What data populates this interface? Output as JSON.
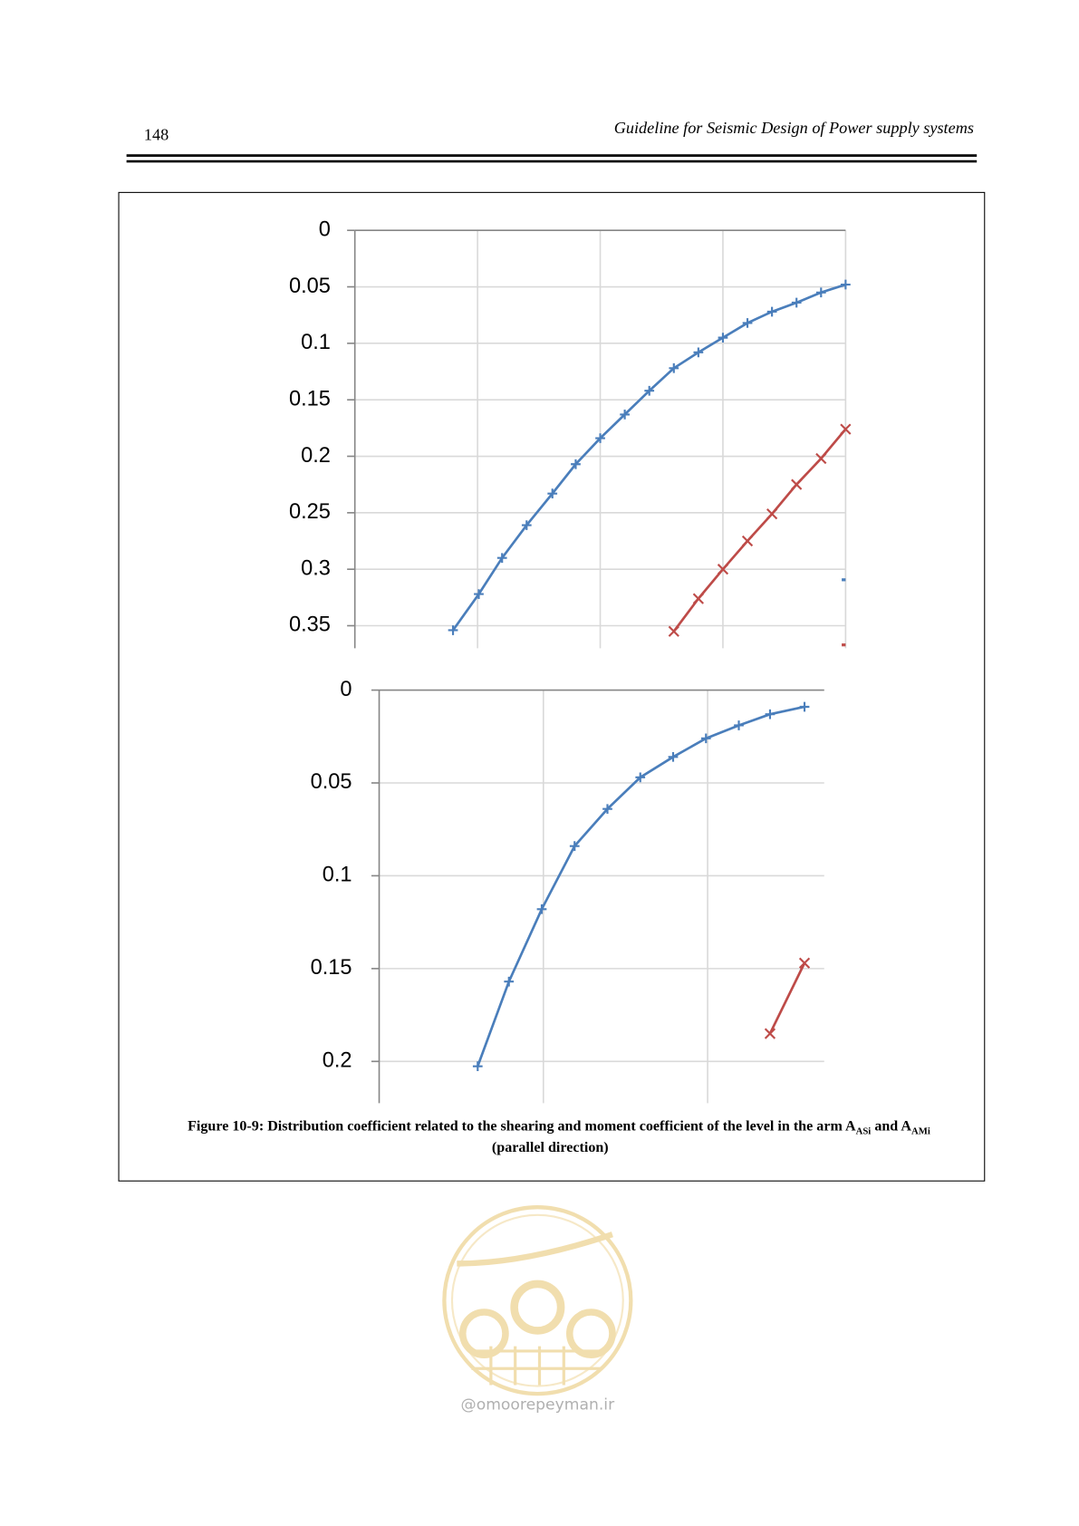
{
  "header": {
    "page_number": "148",
    "running_title": "Guideline for Seismic Design of Power supply systems"
  },
  "chart_data": [
    {
      "type": "line",
      "y_inverted": true,
      "grid": true,
      "xlim": [
        0,
        4
      ],
      "xticks": [
        1,
        2,
        3,
        4
      ],
      "ylim": [
        0,
        0.37
      ],
      "yticks": [
        0,
        0.05,
        0.1,
        0.15,
        0.2,
        0.25,
        0.3,
        0.35
      ],
      "series": [
        {
          "color": "#4a7ebb",
          "marker": "plus",
          "x": [
            0.8,
            1.01,
            1.2,
            1.4,
            1.61,
            1.8,
            2.0,
            2.2,
            2.4,
            2.6,
            2.8,
            3.0,
            3.2,
            3.4,
            3.6,
            3.8,
            4.0
          ],
          "values": [
            0.354,
            0.322,
            0.29,
            0.261,
            0.233,
            0.207,
            0.184,
            0.163,
            0.142,
            0.122,
            0.108,
            0.095,
            0.082,
            0.072,
            0.064,
            0.055,
            0.048
          ]
        },
        {
          "color": "#be4b48",
          "marker": "cross",
          "x": [
            2.6,
            2.8,
            3.0,
            3.2,
            3.4,
            3.6,
            3.8,
            4.0
          ],
          "values": [
            0.355,
            0.326,
            0.3,
            0.275,
            0.251,
            0.225,
            0.202,
            0.176
          ]
        }
      ]
    },
    {
      "type": "line",
      "y_inverted": true,
      "grid": true,
      "xlim": [
        0,
        2.71
      ],
      "xticks": [
        1,
        2
      ],
      "ylim": [
        0,
        0.2225
      ],
      "yticks": [
        0,
        0.05,
        0.1,
        0.15,
        0.2
      ],
      "series": [
        {
          "color": "#4a7ebb",
          "marker": "plus",
          "x": [
            0.6,
            0.79,
            0.99,
            1.19,
            1.39,
            1.59,
            1.79,
            1.99,
            2.19,
            2.38,
            2.59
          ],
          "values": [
            0.2026,
            0.157,
            0.118,
            0.084,
            0.064,
            0.047,
            0.036,
            0.026,
            0.019,
            0.013,
            0.009
          ]
        },
        {
          "color": "#be4b48",
          "marker": "cross",
          "x": [
            2.38,
            2.59
          ],
          "values": [
            0.185,
            0.147
          ]
        }
      ]
    }
  ],
  "caption": {
    "line1": [
      "Figure 10-9: Distribution coefficient related to the shearing and moment coefficient of the level in the arm A",
      "ASi",
      " and A",
      "AMi"
    ],
    "line2": "(parallel direction)"
  },
  "watermark": "@omoorepeyman.ir"
}
